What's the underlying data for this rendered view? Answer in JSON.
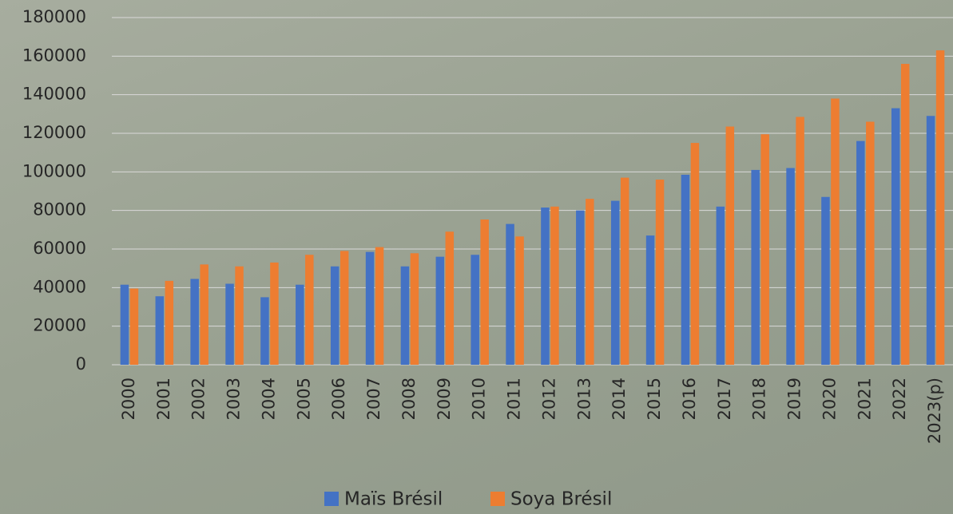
{
  "chart_data": {
    "type": "bar",
    "categories": [
      "2000",
      "2001",
      "2002",
      "2003",
      "2004",
      "2005",
      "2006",
      "2007",
      "2008",
      "2009",
      "2010",
      "2011",
      "2012",
      "2013",
      "2014",
      "2015",
      "2016",
      "2017",
      "2018",
      "2019",
      "2020",
      "2021",
      "2022",
      "2023(p)"
    ],
    "series": [
      {
        "name": "Maïs Brésil",
        "color": "#4472c4",
        "values": [
          41500,
          35500,
          44500,
          42000,
          35000,
          41500,
          51000,
          58500,
          51000,
          56000,
          57000,
          73000,
          81500,
          80000,
          85000,
          67000,
          98500,
          82000,
          101000,
          102000,
          87000,
          116000,
          133000,
          129000
        ]
      },
      {
        "name": "Soya Brésil",
        "color": "#ed7d31",
        "values": [
          39500,
          43500,
          52000,
          51000,
          53000,
          57000,
          59000,
          61000,
          57800,
          69000,
          75300,
          66500,
          82000,
          86000,
          97000,
          96000,
          115000,
          123500,
          119500,
          128500,
          138000,
          126000,
          156000,
          163000
        ]
      }
    ],
    "ylim": [
      0,
      180000
    ],
    "yticks": [
      0,
      20000,
      40000,
      60000,
      80000,
      100000,
      120000,
      140000,
      160000,
      180000
    ],
    "grid": true
  }
}
